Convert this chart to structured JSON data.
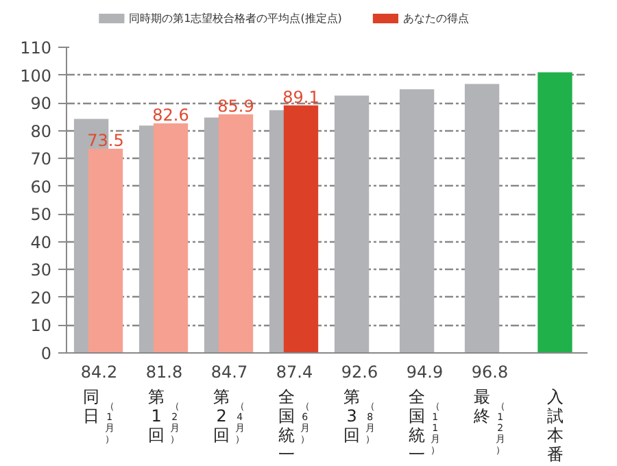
{
  "chart_data": {
    "type": "bar",
    "categories": [
      "同日（1月）",
      "第1回（2月）",
      "第2回（4月）",
      "全国統一（6月）",
      "第3回（8月）",
      "全国統一（11月）",
      "最終（12月）",
      "入試本番"
    ],
    "series": [
      {
        "name": "同時期の第1志望校合格者の平均点(推定点)",
        "color": "#b2b3b6",
        "values": [
          84.2,
          81.8,
          84.7,
          87.4,
          92.6,
          94.9,
          96.8,
          null
        ],
        "value_labels": [
          "84.2",
          "81.8",
          "84.7",
          "87.4",
          "92.6",
          "94.9",
          "96.8",
          null
        ]
      },
      {
        "name": "あなたの得点",
        "color": "#dc4128",
        "colors": [
          "#f6a092",
          "#f6a092",
          "#f6a092",
          "#dc4128",
          null,
          null,
          null,
          null
        ],
        "values": [
          73.5,
          82.6,
          85.9,
          89.1,
          null,
          null,
          null,
          null
        ],
        "value_labels": [
          "73.5",
          "82.6",
          "85.9",
          "89.1",
          null,
          null,
          null,
          null
        ]
      },
      {
        "color": "#21b14b",
        "values": [
          null,
          null,
          null,
          null,
          null,
          null,
          null,
          101
        ]
      }
    ],
    "ylim": [
      0,
      110
    ],
    "yticks": [
      0,
      10,
      20,
      30,
      40,
      50,
      60,
      70,
      80,
      90,
      100,
      110
    ],
    "grid": "y",
    "legend": "top left"
  }
}
